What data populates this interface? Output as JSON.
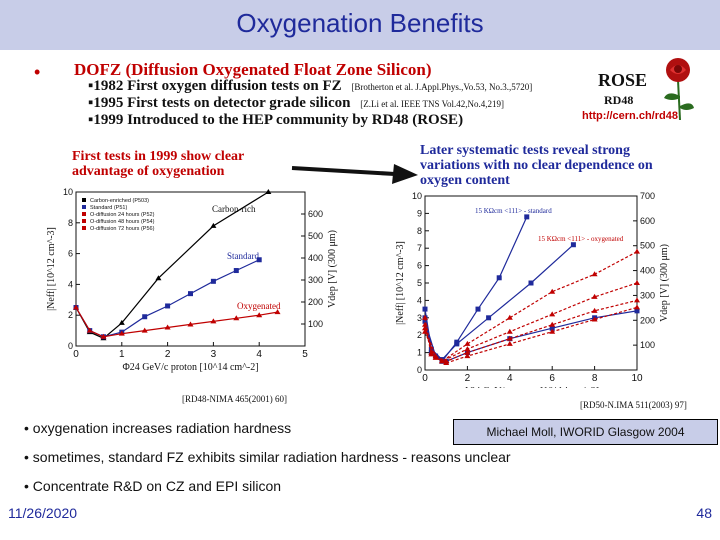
{
  "slide": {
    "title": "Oxygenation Benefits",
    "bullet_symbol": "•",
    "dofz_heading": "DOFZ (Diffusion Oxygenated Float Zone Silicon)",
    "history": [
      {
        "text": "▪1982 First oxygen diffusion tests on FZ",
        "ref": "[Brotherton et al. J.Appl.Phys.,Vo.53, No.3.,5720]"
      },
      {
        "text": "▪1995 First tests on detector grade silicon",
        "ref": "[Z.Li et al. IEEE TNS Vol.42,No.4,219]"
      },
      {
        "text": "▪1999 Introduced to the HEP community by RD48 (ROSE)",
        "ref": ""
      }
    ],
    "rose": {
      "title": "ROSE",
      "sub": "RD48",
      "link": "http://cern.ch/rd48"
    },
    "left_caption": "First tests in 1999 show clear advantage of oxygenation",
    "right_caption": "Later systematic tests reveal strong variations with no clear dependence on oxygen content",
    "left_ref": "[RD48-NIMA 465(2001) 60]",
    "right_ref": "[RD50-N.IMA 511(2003) 97]",
    "bullets": [
      "• oxygenation increases radiation hardness",
      "• sometimes, standard FZ exhibits similar radiation hardness - reasons unclear",
      "• Concentrate R&D on CZ and EPI silicon"
    ],
    "credit": "Michael Moll, IWORID Glasgow 2004",
    "date": "11/26/2020",
    "page_number": "48"
  },
  "colors": {
    "title": "#1f2a9b",
    "title_bg": "#c8cde8",
    "red": "#c00000",
    "blue": "#1f2a9b"
  },
  "chart_data": [
    {
      "type": "line",
      "title": "",
      "xlabel": "Φ24 GeV/c proton [10^14 cm^-2]",
      "ylabel": "|Neff| [10^12 cm^-3]",
      "y2label": "Vdep [V] (300 μm)",
      "xlim": [
        0,
        5
      ],
      "ylim": [
        0,
        10
      ],
      "y2lim": [
        0,
        700
      ],
      "x_ticks": [
        "0",
        "1",
        "2",
        "3",
        "4",
        "5"
      ],
      "y_ticks": [
        "0",
        "2",
        "4",
        "6",
        "8",
        "10"
      ],
      "y2_ticks": [
        "100",
        "200",
        "300",
        "400",
        "500",
        "600"
      ],
      "legend": [
        "Carbon-enriched (P503)",
        "Standard (P51)",
        "O-diffusion 24 hours (P52)",
        "O-diffusion 48 hours (P54)",
        "O-diffusion 72 hours (P56)"
      ],
      "annotations": [
        "Carbon-rich",
        "Standard",
        "Oxygenated"
      ],
      "series": [
        {
          "name": "Carbon-rich",
          "color": "#000000",
          "x": [
            0,
            0.3,
            0.6,
            1.0,
            1.8,
            3.0,
            4.2
          ],
          "y": [
            2.5,
            0.9,
            0.5,
            1.5,
            4.4,
            7.8,
            10
          ]
        },
        {
          "name": "Standard",
          "color": "#1f2a9b",
          "x": [
            0,
            0.3,
            0.6,
            1.0,
            1.5,
            2.0,
            2.5,
            3.0,
            3.5,
            4.0
          ],
          "y": [
            2.5,
            1.0,
            0.6,
            0.9,
            1.9,
            2.6,
            3.4,
            4.2,
            4.9,
            5.6
          ]
        },
        {
          "name": "Oxygenated",
          "color": "#c00000",
          "x": [
            0,
            0.3,
            0.6,
            1.0,
            1.5,
            2.0,
            2.5,
            3.0,
            3.5,
            4.0,
            4.4
          ],
          "y": [
            2.5,
            1.0,
            0.6,
            0.8,
            1.0,
            1.2,
            1.4,
            1.6,
            1.8,
            2.0,
            2.2
          ]
        }
      ]
    },
    {
      "type": "line",
      "title": "",
      "xlabel": "Φ24 GeV/c proton [10^14 cm^-2]",
      "ylabel": "|Neff| [10^12 cm^-3]",
      "y2label": "Vdep [V] (300 μm)",
      "xlim": [
        0,
        10
      ],
      "ylim": [
        0,
        10
      ],
      "y2lim": [
        0,
        700
      ],
      "x_ticks": [
        "0",
        "2",
        "4",
        "6",
        "8",
        "10"
      ],
      "y_ticks": [
        "0",
        "1",
        "2",
        "3",
        "4",
        "5",
        "6",
        "7",
        "8",
        "9",
        "10"
      ],
      "y2_ticks": [
        "100",
        "200",
        "300",
        "400",
        "500",
        "600",
        "700"
      ],
      "annotations": [
        "15 KΩcm <111> - standard",
        "15 KΩcm <111> - oxygenated"
      ],
      "series": [
        {
          "name": "standard-1",
          "color": "#1f2a9b",
          "x": [
            0,
            0.3,
            0.8,
            1.5,
            2.5,
            3.5,
            4.8
          ],
          "y": [
            3.0,
            1.0,
            0.5,
            1.6,
            3.5,
            5.3,
            8.8
          ]
        },
        {
          "name": "standard-2",
          "color": "#1f2a9b",
          "x": [
            0,
            0.3,
            0.8,
            1.5,
            3.0,
            5.0,
            7.0
          ],
          "y": [
            3.5,
            1.2,
            0.6,
            1.5,
            3.0,
            5.0,
            7.2
          ]
        },
        {
          "name": "standard-3",
          "color": "#1f2a9b",
          "x": [
            0,
            0.5,
            1.0,
            2.0,
            4.0,
            6.0,
            8.0,
            10.0
          ],
          "y": [
            2.8,
            0.8,
            0.5,
            1.0,
            1.8,
            2.4,
            3.0,
            3.4
          ]
        },
        {
          "name": "oxygenated-1",
          "color": "#c00000",
          "x": [
            0,
            0.3,
            0.8,
            2.0,
            4.0,
            6.0,
            8.0,
            10.0
          ],
          "y": [
            3.0,
            1.0,
            0.5,
            1.5,
            3.0,
            4.5,
            5.5,
            6.8
          ]
        },
        {
          "name": "oxygenated-2",
          "color": "#c00000",
          "x": [
            0,
            0.3,
            0.8,
            2.0,
            4.0,
            6.0,
            8.0,
            10.0
          ],
          "y": [
            2.6,
            0.9,
            0.5,
            1.2,
            2.2,
            3.2,
            4.2,
            5.0
          ]
        },
        {
          "name": "oxygenated-3",
          "color": "#c00000",
          "x": [
            0,
            0.5,
            1.0,
            2.0,
            4.0,
            6.0,
            8.0,
            10.0
          ],
          "y": [
            2.4,
            0.8,
            0.5,
            1.0,
            1.8,
            2.6,
            3.4,
            4.0
          ]
        },
        {
          "name": "oxygenated-4",
          "color": "#c00000",
          "x": [
            0,
            0.5,
            1.0,
            2.0,
            4.0,
            6.0,
            8.0,
            10.0
          ],
          "y": [
            2.2,
            0.7,
            0.4,
            0.8,
            1.5,
            2.2,
            2.9,
            3.6
          ]
        }
      ]
    }
  ]
}
